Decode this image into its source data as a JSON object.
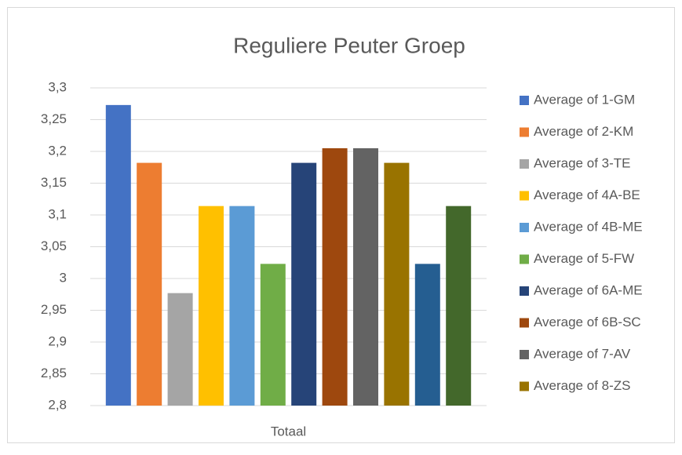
{
  "chart_data": {
    "type": "bar",
    "title": "Reguliere Peuter Groep",
    "categories": [
      "Totaal"
    ],
    "series": [
      {
        "name": "Average of 1-GM",
        "color": "#4472c4",
        "values": [
          3.273
        ]
      },
      {
        "name": "Average of 2-KM",
        "color": "#ed7d31",
        "values": [
          3.182
        ]
      },
      {
        "name": "Average of 3-TE",
        "color": "#a5a5a5",
        "values": [
          2.977
        ]
      },
      {
        "name": "Average of 4A-BE",
        "color": "#ffc000",
        "values": [
          3.114
        ]
      },
      {
        "name": "Average of 4B-ME",
        "color": "#5b9bd5",
        "values": [
          3.114
        ]
      },
      {
        "name": "Average of 5-FW",
        "color": "#70ad47",
        "values": [
          3.023
        ]
      },
      {
        "name": "Average of 6A-ME",
        "color": "#264478",
        "values": [
          3.182
        ]
      },
      {
        "name": "Average of 6B-SC",
        "color": "#9e480e",
        "values": [
          3.205
        ]
      },
      {
        "name": "Average of 7-AV",
        "color": "#636363",
        "values": [
          3.205
        ]
      },
      {
        "name": "Average of 8-ZS",
        "color": "#997300",
        "values": [
          3.182
        ]
      },
      {
        "name": null,
        "color": "#255e91",
        "values": [
          3.023
        ]
      },
      {
        "name": null,
        "color": "#43682b",
        "values": [
          3.114
        ]
      }
    ],
    "ylim": [
      2.8,
      3.3
    ],
    "yticks": [
      {
        "value": 2.8,
        "label": "2,8"
      },
      {
        "value": 2.85,
        "label": "2,85"
      },
      {
        "value": 2.9,
        "label": "2,9"
      },
      {
        "value": 2.95,
        "label": "2,95"
      },
      3,
      {
        "value": 3.05,
        "label": "3,05"
      },
      {
        "value": 3.1,
        "label": "3,1"
      },
      {
        "value": 3.15,
        "label": "3,15"
      },
      {
        "value": 3.2,
        "label": "3,2"
      },
      {
        "value": 3.25,
        "label": "3,25"
      },
      {
        "value": 3.3,
        "label": "3,3"
      }
    ],
    "grid": true,
    "legend": "right"
  }
}
